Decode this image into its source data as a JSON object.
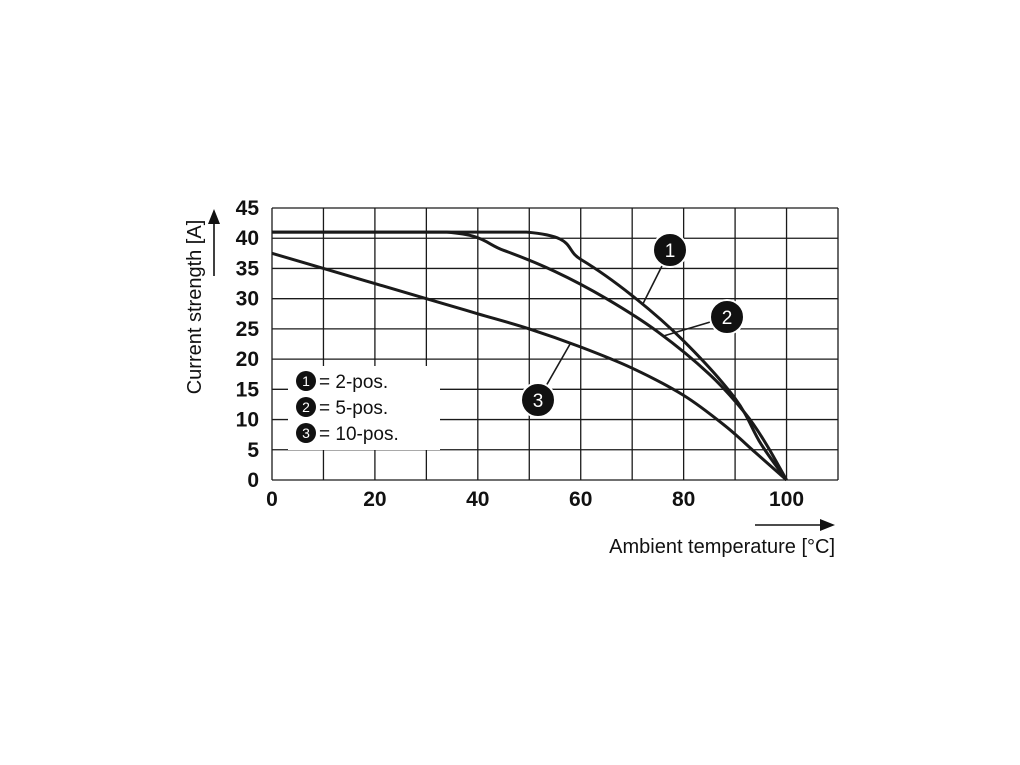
{
  "chart_data": {
    "type": "line",
    "xlabel": "Ambient temperature [°C]",
    "ylabel": "Current strength [A]",
    "xlim": [
      0,
      110
    ],
    "ylim": [
      0,
      45
    ],
    "x_ticks": [
      0,
      20,
      40,
      60,
      80,
      100
    ],
    "y_ticks": [
      0,
      5,
      10,
      15,
      20,
      25,
      30,
      35,
      40,
      45
    ],
    "grid": true,
    "legend_placement": "lower-left",
    "series": [
      {
        "id": "1",
        "name": "2-pos.",
        "points": [
          [
            0,
            41
          ],
          [
            49.5,
            41
          ],
          [
            60,
            36.5
          ],
          [
            70,
            30.5
          ],
          [
            80,
            23
          ],
          [
            90,
            13.5
          ],
          [
            95,
            6
          ],
          [
            100,
            0
          ]
        ]
      },
      {
        "id": "2",
        "name": "5-pos.",
        "points": [
          [
            0,
            41
          ],
          [
            34,
            41
          ],
          [
            45,
            38
          ],
          [
            55,
            34.5
          ],
          [
            65,
            30
          ],
          [
            75,
            24.5
          ],
          [
            85,
            17.5
          ],
          [
            92,
            11
          ],
          [
            96,
            6
          ],
          [
            100,
            0
          ]
        ]
      },
      {
        "id": "3",
        "name": "10-pos.",
        "points": [
          [
            0,
            37.5
          ],
          [
            10,
            35
          ],
          [
            20,
            32.5
          ],
          [
            30,
            30
          ],
          [
            40,
            27.5
          ],
          [
            50,
            25
          ],
          [
            60,
            22
          ],
          [
            70,
            18.5
          ],
          [
            80,
            14
          ],
          [
            88,
            9
          ],
          [
            94,
            4.5
          ],
          [
            100,
            0
          ]
        ]
      }
    ],
    "legend": [
      {
        "id": "1",
        "label": "= 2-pos."
      },
      {
        "id": "2",
        "label": "= 5-pos."
      },
      {
        "id": "3",
        "label": "= 10-pos."
      }
    ],
    "callouts": [
      {
        "id": "1",
        "attach_x": 72,
        "attach_series": "1"
      },
      {
        "id": "2",
        "attach_x": 76,
        "attach_series": "2"
      },
      {
        "id": "3",
        "attach_x": 58,
        "attach_series": "3"
      }
    ],
    "colors": {
      "line": "#1a1a1a",
      "grid": "#1a1a1a",
      "badge": "#111111"
    }
  }
}
